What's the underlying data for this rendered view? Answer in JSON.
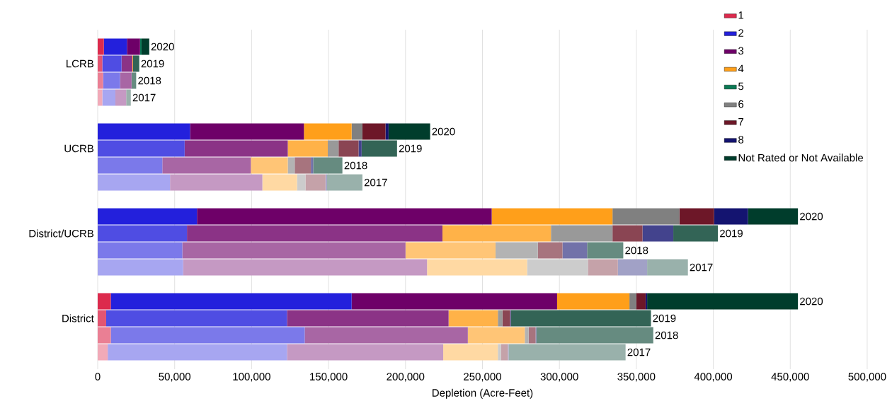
{
  "chart_data": {
    "type": "bar",
    "orientation": "horizontal",
    "stacked": true,
    "xlabel": "Depletion (Acre-Feet)",
    "categories": [
      null,
      "LCRB",
      null,
      null,
      null,
      "UCRB",
      null,
      null,
      null,
      "District/UCRB",
      null,
      null,
      null,
      "District",
      null,
      null
    ],
    "annotations": [
      "2020",
      "2019",
      "2018",
      "2017",
      "2020",
      "2019",
      "2018",
      "2017",
      "2020",
      "2019",
      "2018",
      "2017",
      "2020",
      "2019",
      "2018",
      "2017"
    ],
    "xlim": [
      0,
      500000
    ],
    "xticks": [
      0,
      {
        "value": 50000,
        "label": "50,000"
      },
      {
        "value": 100000,
        "label": "100,000"
      },
      {
        "value": 150000,
        "label": "150,000"
      },
      {
        "value": 200000,
        "label": "200,000"
      },
      {
        "value": 250000,
        "label": "250,000"
      },
      {
        "value": 300000,
        "label": "300,000"
      },
      {
        "value": 350000,
        "label": "350,000"
      },
      {
        "value": 400000,
        "label": "400,000"
      },
      {
        "value": 450000,
        "label": "450,000"
      },
      {
        "value": 500000,
        "label": "500,000"
      }
    ],
    "grid": "x",
    "legend": "top right",
    "series": [
      {
        "name": "1",
        "color": "#dc2a4d",
        "colors": [
          "#dc2a4d",
          "#e35571",
          "#ea7f94",
          "#f1aab8",
          "#dc2a4d",
          "#e35571",
          "#ea7f94",
          "#f1aab8",
          "#dc2a4d",
          "#e35571",
          "#ea7f94",
          "#f1aab8",
          "#dc2a4d",
          "#e35571",
          "#ea7f94",
          "#f1aab8"
        ],
        "values": [
          4000,
          3000,
          3500,
          3000,
          0,
          0,
          0,
          0,
          0,
          0,
          0,
          0,
          8500,
          5500,
          8500,
          6500
        ]
      },
      {
        "name": "2",
        "color": "#2320dc",
        "colors": [
          "#2320dc",
          "#4f4de3",
          "#7b79ea",
          "#a7a6f1",
          "#2320dc",
          "#4f4de3",
          "#7b79ea",
          "#a7a6f1",
          "#2320dc",
          "#4f4de3",
          "#7b79ea",
          "#a7a6f1",
          "#2320dc",
          "#4f4de3",
          "#7b79ea",
          "#a7a6f1"
        ],
        "values": [
          15000,
          12500,
          11000,
          8500,
          60000,
          56500,
          42000,
          47000,
          64500,
          58000,
          55000,
          55500,
          156500,
          117500,
          126000,
          116500
        ]
      },
      {
        "name": "3",
        "color": "#6e0068",
        "colors": [
          "#6e0068",
          "#8b3386",
          "#a866a4",
          "#c599c3",
          "#6e0068",
          "#8b3386",
          "#a866a4",
          "#c599c3",
          "#6e0068",
          "#8b3386",
          "#a866a4",
          "#c599c3",
          "#6e0068",
          "#8b3386",
          "#a866a4",
          "#c599c3"
        ],
        "values": [
          8500,
          7000,
          7500,
          7000,
          74000,
          67000,
          57500,
          60000,
          191500,
          166000,
          145000,
          158500,
          133500,
          105000,
          106000,
          101500
        ]
      },
      {
        "name": "4",
        "color": "#ff9f1a",
        "colors": [
          "#ff9f1a",
          "#ffb248",
          "#ffc576",
          "#ffd9a3",
          "#ff9f1a",
          "#ffb248",
          "#ffc576",
          "#ffd9a3",
          "#ff9f1a",
          "#ffb248",
          "#ffc576",
          "#ffd9a3",
          "#ff9f1a",
          "#ffb248",
          "#ffc576",
          "#ffd9a3"
        ],
        "values": [
          0,
          500,
          0,
          0,
          31000,
          26000,
          24000,
          22500,
          78500,
          70500,
          58500,
          65000,
          47000,
          32000,
          37000,
          35500
        ]
      },
      {
        "name": "5",
        "color": "#0b7a55",
        "colors": [
          "#0b7a55",
          "#3c9577",
          "#6daf99",
          "#9dcabb",
          "#0b7a55",
          "#3c9577",
          "#6daf99",
          "#9dcabb",
          "#0b7a55",
          "#3c9577",
          "#6daf99",
          "#9dcabb",
          "#0b7a55",
          "#3c9577",
          "#6daf99",
          "#9dcabb"
        ],
        "values": [
          1000,
          0,
          0,
          0,
          0,
          0,
          0,
          0,
          0,
          0,
          0,
          0,
          0,
          0,
          0,
          0
        ]
      },
      {
        "name": "6",
        "color": "#808080",
        "colors": [
          "#808080",
          "#999999",
          "#b3b3b3",
          "#cccccc",
          "#808080",
          "#999999",
          "#b3b3b3",
          "#cccccc",
          "#808080",
          "#999999",
          "#b3b3b3",
          "#cccccc",
          "#808080",
          "#999999",
          "#b3b3b3",
          "#cccccc"
        ],
        "values": [
          0,
          0,
          0,
          0,
          7000,
          7000,
          4500,
          5500,
          43500,
          40000,
          27500,
          39500,
          4500,
          3000,
          2500,
          2000
        ]
      },
      {
        "name": "7",
        "color": "#6d1728",
        "colors": [
          "#6d1728",
          "#8a4553",
          "#a7747e",
          "#c5a2a9",
          "#6d1728",
          "#8a4553",
          "#a7747e",
          "#c5a2a9",
          "#6d1728",
          "#8a4553",
          "#a7747e",
          "#c5a2a9",
          "#6d1728",
          "#8a4553",
          "#a7747e",
          "#c5a2a9"
        ],
        "values": [
          0,
          0,
          0,
          0,
          15000,
          13000,
          10500,
          13000,
          22500,
          19500,
          16000,
          19500,
          6000,
          5000,
          4500,
          4500
        ]
      },
      {
        "name": "8",
        "color": "#141470",
        "colors": [
          "#141470",
          "#43438d",
          "#7272a9",
          "#a1a1c6",
          "#141470",
          "#43438d",
          "#7272a9",
          "#a1a1c6",
          "#141470",
          "#43438d",
          "#7272a9",
          "#a1a1c6",
          "#141470",
          "#43438d",
          "#7272a9",
          "#a1a1c6"
        ],
        "values": [
          0,
          0,
          0,
          0,
          2000,
          2000,
          1500,
          1000,
          22000,
          20000,
          16000,
          19000,
          1000,
          500,
          500,
          500
        ]
      },
      {
        "name": "Not Rated or Not Available",
        "color": "#003d2c",
        "colors": [
          "#003d2c",
          "#336456",
          "#668b80",
          "#99b1ab",
          "#003d2c",
          "#336456",
          "#668b80",
          "#99b1ab",
          "#003d2c",
          "#336456",
          "#668b80",
          "#99b1ab",
          "#003d2c",
          "#336456",
          "#668b80",
          "#99b1ab"
        ],
        "values": [
          5000,
          4000,
          3000,
          3000,
          27000,
          23000,
          19000,
          23000,
          32500,
          29000,
          23500,
          26500,
          98000,
          91000,
          76000,
          76000
        ]
      }
    ]
  }
}
